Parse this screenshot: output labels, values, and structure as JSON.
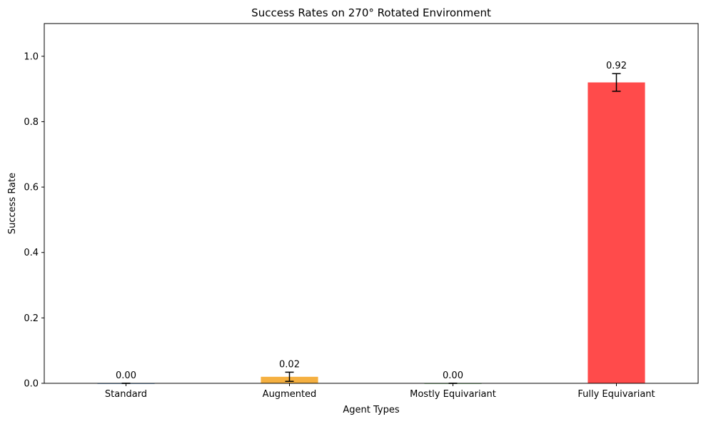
{
  "chart_data": {
    "type": "bar",
    "title": "Success Rates on 270° Rotated Environment",
    "xlabel": "Agent Types",
    "ylabel": "Success Rate",
    "categories": [
      "Standard",
      "Augmented",
      "Mostly Equivariant",
      "Fully Equivariant"
    ],
    "values": [
      0.0,
      0.02,
      0.0,
      0.92
    ],
    "errors": [
      0.0,
      0.014,
      0.0,
      0.027
    ],
    "value_labels": [
      "0.00",
      "0.02",
      "0.00",
      "0.92"
    ],
    "colors": [
      "#4a90d9",
      "#f5b041",
      "#5cb85c",
      "#ff4b4b"
    ],
    "ylim": [
      0,
      1.1
    ],
    "yticks": [
      0.0,
      0.2,
      0.4,
      0.6,
      0.8,
      1.0
    ],
    "ytick_labels": [
      "0.0",
      "0.2",
      "0.4",
      "0.6",
      "0.8",
      "1.0"
    ],
    "grid": false,
    "legend": false
  }
}
